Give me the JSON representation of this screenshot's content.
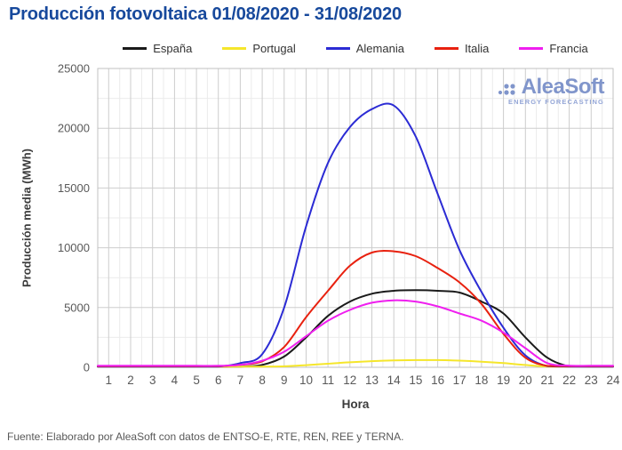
{
  "title": "Producción fotovoltaica 01/08/2020 - 31/08/2020",
  "footer": "Fuente: Elaborado por AleaSoft con datos de ENTSO-E, RTE, REN, REE y TERNA.",
  "logo": {
    "name": "AleaSoft",
    "tagline": "ENERGY FORECASTING",
    "color": "#8095cb",
    "tagline_color": "#93a5d6"
  },
  "colors": {
    "title": "#17499c",
    "grid_major": "#cdcdcd",
    "grid_minor": "#ebebeb",
    "plot_border": "#c0c0c0",
    "tick_label": "#595959",
    "axis_title": "#3c3c3c",
    "legend_label": "#333333",
    "footer": "#595959",
    "background": "#ffffff"
  },
  "chart_data": {
    "type": "line",
    "title": "Producción fotovoltaica 01/08/2020 - 31/08/2020",
    "xlabel": "Hora",
    "ylabel": "Producción media (MWh)",
    "x": [
      1,
      2,
      3,
      4,
      5,
      6,
      7,
      8,
      9,
      10,
      11,
      12,
      13,
      14,
      15,
      16,
      17,
      18,
      19,
      20,
      21,
      22,
      23,
      24
    ],
    "x_ticks": [
      1,
      2,
      3,
      4,
      5,
      6,
      7,
      8,
      9,
      10,
      11,
      12,
      13,
      14,
      15,
      16,
      17,
      18,
      19,
      20,
      21,
      22,
      23,
      24
    ],
    "y_ticks": [
      0,
      5000,
      10000,
      15000,
      20000,
      25000
    ],
    "xlim": [
      0.5,
      24
    ],
    "ylim": [
      0,
      25000
    ],
    "y_minor_step": 2500,
    "x_minor_step": 0.5,
    "grid": true,
    "legend_position": "top",
    "units": "MWh",
    "series": [
      {
        "name": "España",
        "color": "#1a1a1a",
        "values": [
          20,
          20,
          20,
          20,
          20,
          20,
          30,
          200,
          900,
          2500,
          4300,
          5500,
          6150,
          6400,
          6450,
          6400,
          6250,
          5500,
          4500,
          2500,
          800,
          80,
          20,
          20
        ]
      },
      {
        "name": "Portugal",
        "color": "#f5e62b",
        "values": [
          5,
          5,
          5,
          5,
          5,
          5,
          5,
          20,
          80,
          180,
          300,
          420,
          510,
          570,
          600,
          600,
          560,
          470,
          350,
          190,
          60,
          10,
          5,
          5
        ]
      },
      {
        "name": "Alemania",
        "color": "#2b2bd4",
        "values": [
          30,
          30,
          30,
          30,
          30,
          40,
          350,
          1100,
          5000,
          11800,
          17100,
          20100,
          21600,
          21900,
          19300,
          14500,
          9800,
          6300,
          3300,
          1000,
          100,
          30,
          30,
          30
        ]
      },
      {
        "name": "Italia",
        "color": "#e8210f",
        "values": [
          100,
          100,
          100,
          100,
          100,
          100,
          200,
          500,
          1700,
          4200,
          6400,
          8500,
          9600,
          9700,
          9300,
          8300,
          7100,
          5300,
          2800,
          800,
          120,
          100,
          100,
          100
        ]
      },
      {
        "name": "Francia",
        "color": "#ef1fef",
        "values": [
          130,
          130,
          130,
          130,
          130,
          130,
          200,
          550,
          1300,
          2600,
          3900,
          4800,
          5400,
          5600,
          5500,
          5100,
          4500,
          3900,
          2900,
          1600,
          350,
          140,
          130,
          130
        ]
      }
    ]
  }
}
